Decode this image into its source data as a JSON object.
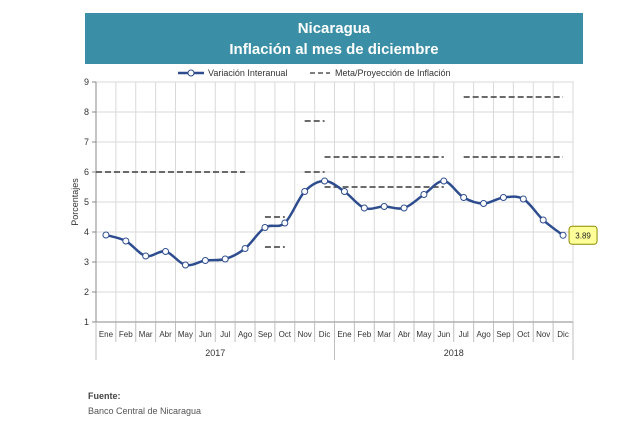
{
  "title": {
    "line1": "Nicaragua",
    "line2": "Inflación al mes de diciembre"
  },
  "legend": {
    "series_label": "Variación Interanual",
    "target_label": "Meta/Proyección de Inflación"
  },
  "source": {
    "label": "Fuente:",
    "text": "Banco Central de Nicaragua"
  },
  "colors": {
    "title_bg": "#3a8ea5",
    "series": "#2e4d8f",
    "target": "#555555",
    "callout_bg": "#ffff99"
  },
  "chart_data": {
    "type": "line",
    "ylabel": "Porcentajes",
    "ylim": [
      1,
      9
    ],
    "yticks": [
      1,
      2,
      3,
      4,
      5,
      6,
      7,
      8,
      9
    ],
    "grid": true,
    "categories": [
      "Ene",
      "Feb",
      "Mar",
      "Abr",
      "May",
      "Jun",
      "Jul",
      "Ago",
      "Sep",
      "Oct",
      "Nov",
      "Dic",
      "Ene",
      "Feb",
      "Mar",
      "Abr",
      "May",
      "Jun",
      "Jul",
      "Ago",
      "Sep",
      "Oct",
      "Nov",
      "Dic"
    ],
    "groups": [
      {
        "label": "2017",
        "start": 0,
        "end": 11
      },
      {
        "label": "2018",
        "start": 12,
        "end": 23
      }
    ],
    "series": [
      {
        "name": "Variación Interanual",
        "values": [
          3.9,
          3.7,
          3.2,
          3.35,
          2.9,
          3.05,
          3.1,
          3.45,
          4.15,
          4.3,
          5.35,
          5.7,
          5.35,
          4.8,
          4.85,
          4.8,
          5.25,
          5.7,
          5.15,
          4.95,
          5.15,
          5.1,
          4.4,
          3.89
        ]
      }
    ],
    "targets": [
      {
        "from": 0,
        "to": 7.5,
        "value": 6.0
      },
      {
        "from": 8.5,
        "to": 9.5,
        "value": 4.5
      },
      {
        "from": 8.5,
        "to": 9.5,
        "value": 3.5
      },
      {
        "from": 10.5,
        "to": 11.5,
        "value": 7.7
      },
      {
        "from": 10.5,
        "to": 11.5,
        "value": 6.0
      },
      {
        "from": 11.5,
        "to": 17.5,
        "value": 6.5
      },
      {
        "from": 11.5,
        "to": 17.5,
        "value": 5.5
      },
      {
        "from": 18.5,
        "to": 23.5,
        "value": 8.5
      },
      {
        "from": 18.5,
        "to": 23.5,
        "value": 6.5
      }
    ],
    "callout": {
      "index": 23,
      "text": "3.89"
    }
  }
}
